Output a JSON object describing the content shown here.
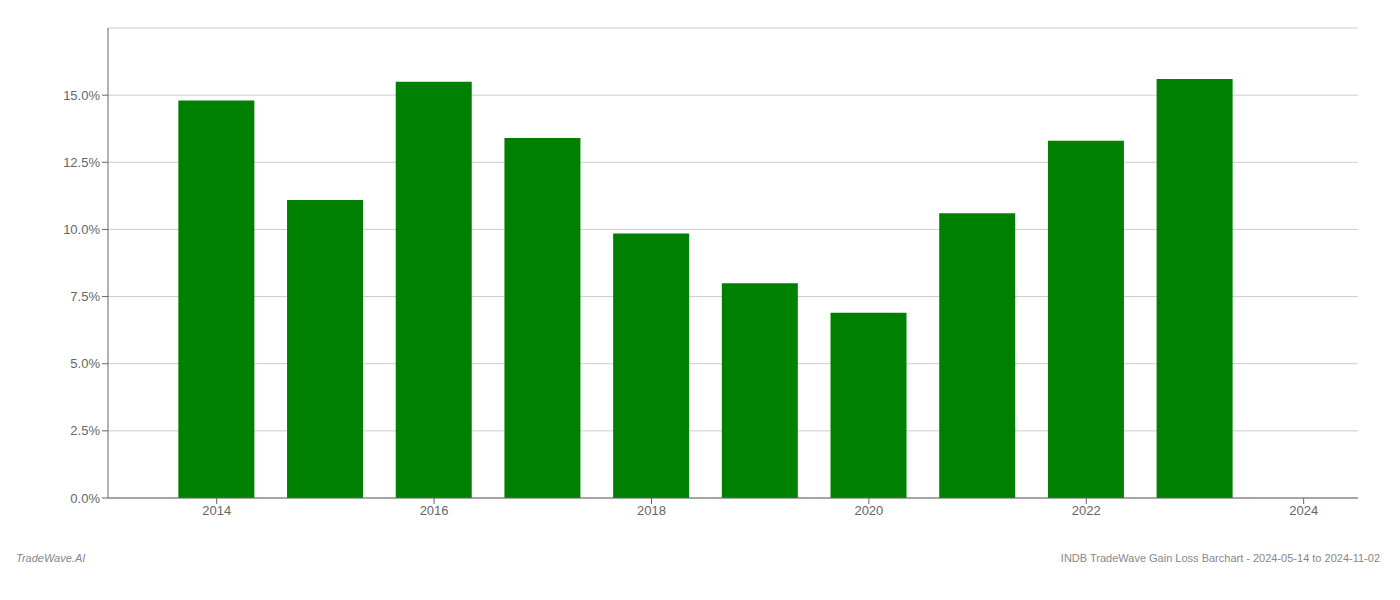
{
  "chart_data": {
    "type": "bar",
    "x": [
      2014,
      2015,
      2016,
      2017,
      2018,
      2019,
      2020,
      2021,
      2022,
      2023
    ],
    "values": [
      0.148,
      0.111,
      0.155,
      0.134,
      0.0985,
      0.08,
      0.069,
      0.106,
      0.133,
      0.156
    ],
    "color": "#008000",
    "xlim": [
      2013.0,
      2024.5
    ],
    "xticks": [
      2014,
      2016,
      2018,
      2020,
      2022,
      2024
    ],
    "ylim": [
      0.0,
      0.175
    ],
    "yticks": [
      {
        "value": 0.0,
        "label": "0.0%"
      },
      {
        "value": 0.025,
        "label": "2.5%"
      },
      {
        "value": 0.05,
        "label": "5.0%"
      },
      {
        "value": 0.075,
        "label": "7.5%"
      },
      {
        "value": 0.1,
        "label": "10.0%"
      },
      {
        "value": 0.125,
        "label": "12.5%"
      },
      {
        "value": 0.15,
        "label": "15.0%"
      }
    ],
    "grid": "y",
    "annotations": [
      "TradeWave.AI",
      "INDB TradeWave Gain Loss Barchart - 2024-05-14 to 2024-11-02"
    ]
  }
}
